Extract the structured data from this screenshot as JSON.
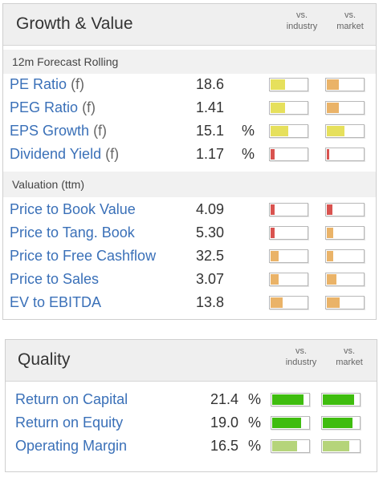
{
  "growth": {
    "title": "Growth & Value",
    "col_industry": [
      "vs.",
      "industry"
    ],
    "col_market": [
      "vs.",
      "market"
    ],
    "sections": [
      {
        "label": "12m Forecast Rolling",
        "rows": [
          {
            "label": "PE Ratio",
            "suffix": "(f)",
            "value": "18.6",
            "unit": "",
            "industry": {
              "level": 0.42,
              "color": "#e6e05c"
            },
            "market": {
              "level": 0.36,
              "color": "#eab368"
            }
          },
          {
            "label": "PEG Ratio",
            "suffix": "(f)",
            "value": "1.41",
            "unit": "",
            "industry": {
              "level": 0.42,
              "color": "#e6e05c"
            },
            "market": {
              "level": 0.36,
              "color": "#eab368"
            }
          },
          {
            "label": "EPS Growth",
            "suffix": "(f)",
            "value": "15.1",
            "unit": "%",
            "industry": {
              "level": 0.5,
              "color": "#e6e05c"
            },
            "market": {
              "level": 0.52,
              "color": "#e6e05c"
            }
          },
          {
            "label": "Dividend Yield",
            "suffix": "(f)",
            "value": "1.17",
            "unit": "%",
            "industry": {
              "level": 0.15,
              "color": "#d9534f"
            },
            "market": {
              "level": 0.1,
              "color": "#d9534f"
            }
          }
        ]
      },
      {
        "label": "Valuation (ttm)",
        "rows": [
          {
            "label": "Price to Book Value",
            "suffix": "",
            "value": "4.09",
            "unit": "",
            "industry": {
              "level": 0.15,
              "color": "#d9534f"
            },
            "market": {
              "level": 0.2,
              "color": "#d9534f"
            }
          },
          {
            "label": "Price to Tang. Book",
            "suffix": "",
            "value": "5.30",
            "unit": "",
            "industry": {
              "level": 0.15,
              "color": "#d9534f"
            },
            "market": {
              "level": 0.22,
              "color": "#eab368"
            }
          },
          {
            "label": "Price to Free Cashflow",
            "suffix": "",
            "value": "32.5",
            "unit": "",
            "industry": {
              "level": 0.26,
              "color": "#eab368"
            },
            "market": {
              "level": 0.22,
              "color": "#eab368"
            }
          },
          {
            "label": "Price to Sales",
            "suffix": "",
            "value": "3.07",
            "unit": "",
            "industry": {
              "level": 0.26,
              "color": "#eab368"
            },
            "market": {
              "level": 0.3,
              "color": "#eab368"
            }
          },
          {
            "label": "EV to EBITDA",
            "suffix": "",
            "value": "13.8",
            "unit": "",
            "industry": {
              "level": 0.36,
              "color": "#eab368"
            },
            "market": {
              "level": 0.38,
              "color": "#eab368"
            }
          }
        ]
      }
    ]
  },
  "quality": {
    "title": "Quality",
    "col_industry": [
      "vs.",
      "industry"
    ],
    "col_market": [
      "vs.",
      "market"
    ],
    "rows": [
      {
        "label": "Return on Capital",
        "value": "21.4",
        "unit": "%",
        "industry": {
          "level": 0.88,
          "color": "#3fbd0f"
        },
        "market": {
          "level": 0.88,
          "color": "#3fbd0f"
        }
      },
      {
        "label": "Return on Equity",
        "value": "19.0",
        "unit": "%",
        "industry": {
          "level": 0.8,
          "color": "#3fbd0f"
        },
        "market": {
          "level": 0.84,
          "color": "#3fbd0f"
        }
      },
      {
        "label": "Operating Margin",
        "value": "16.5",
        "unit": "%",
        "industry": {
          "level": 0.7,
          "color": "#b5d47a"
        },
        "market": {
          "level": 0.74,
          "color": "#b5d47a"
        }
      }
    ]
  }
}
